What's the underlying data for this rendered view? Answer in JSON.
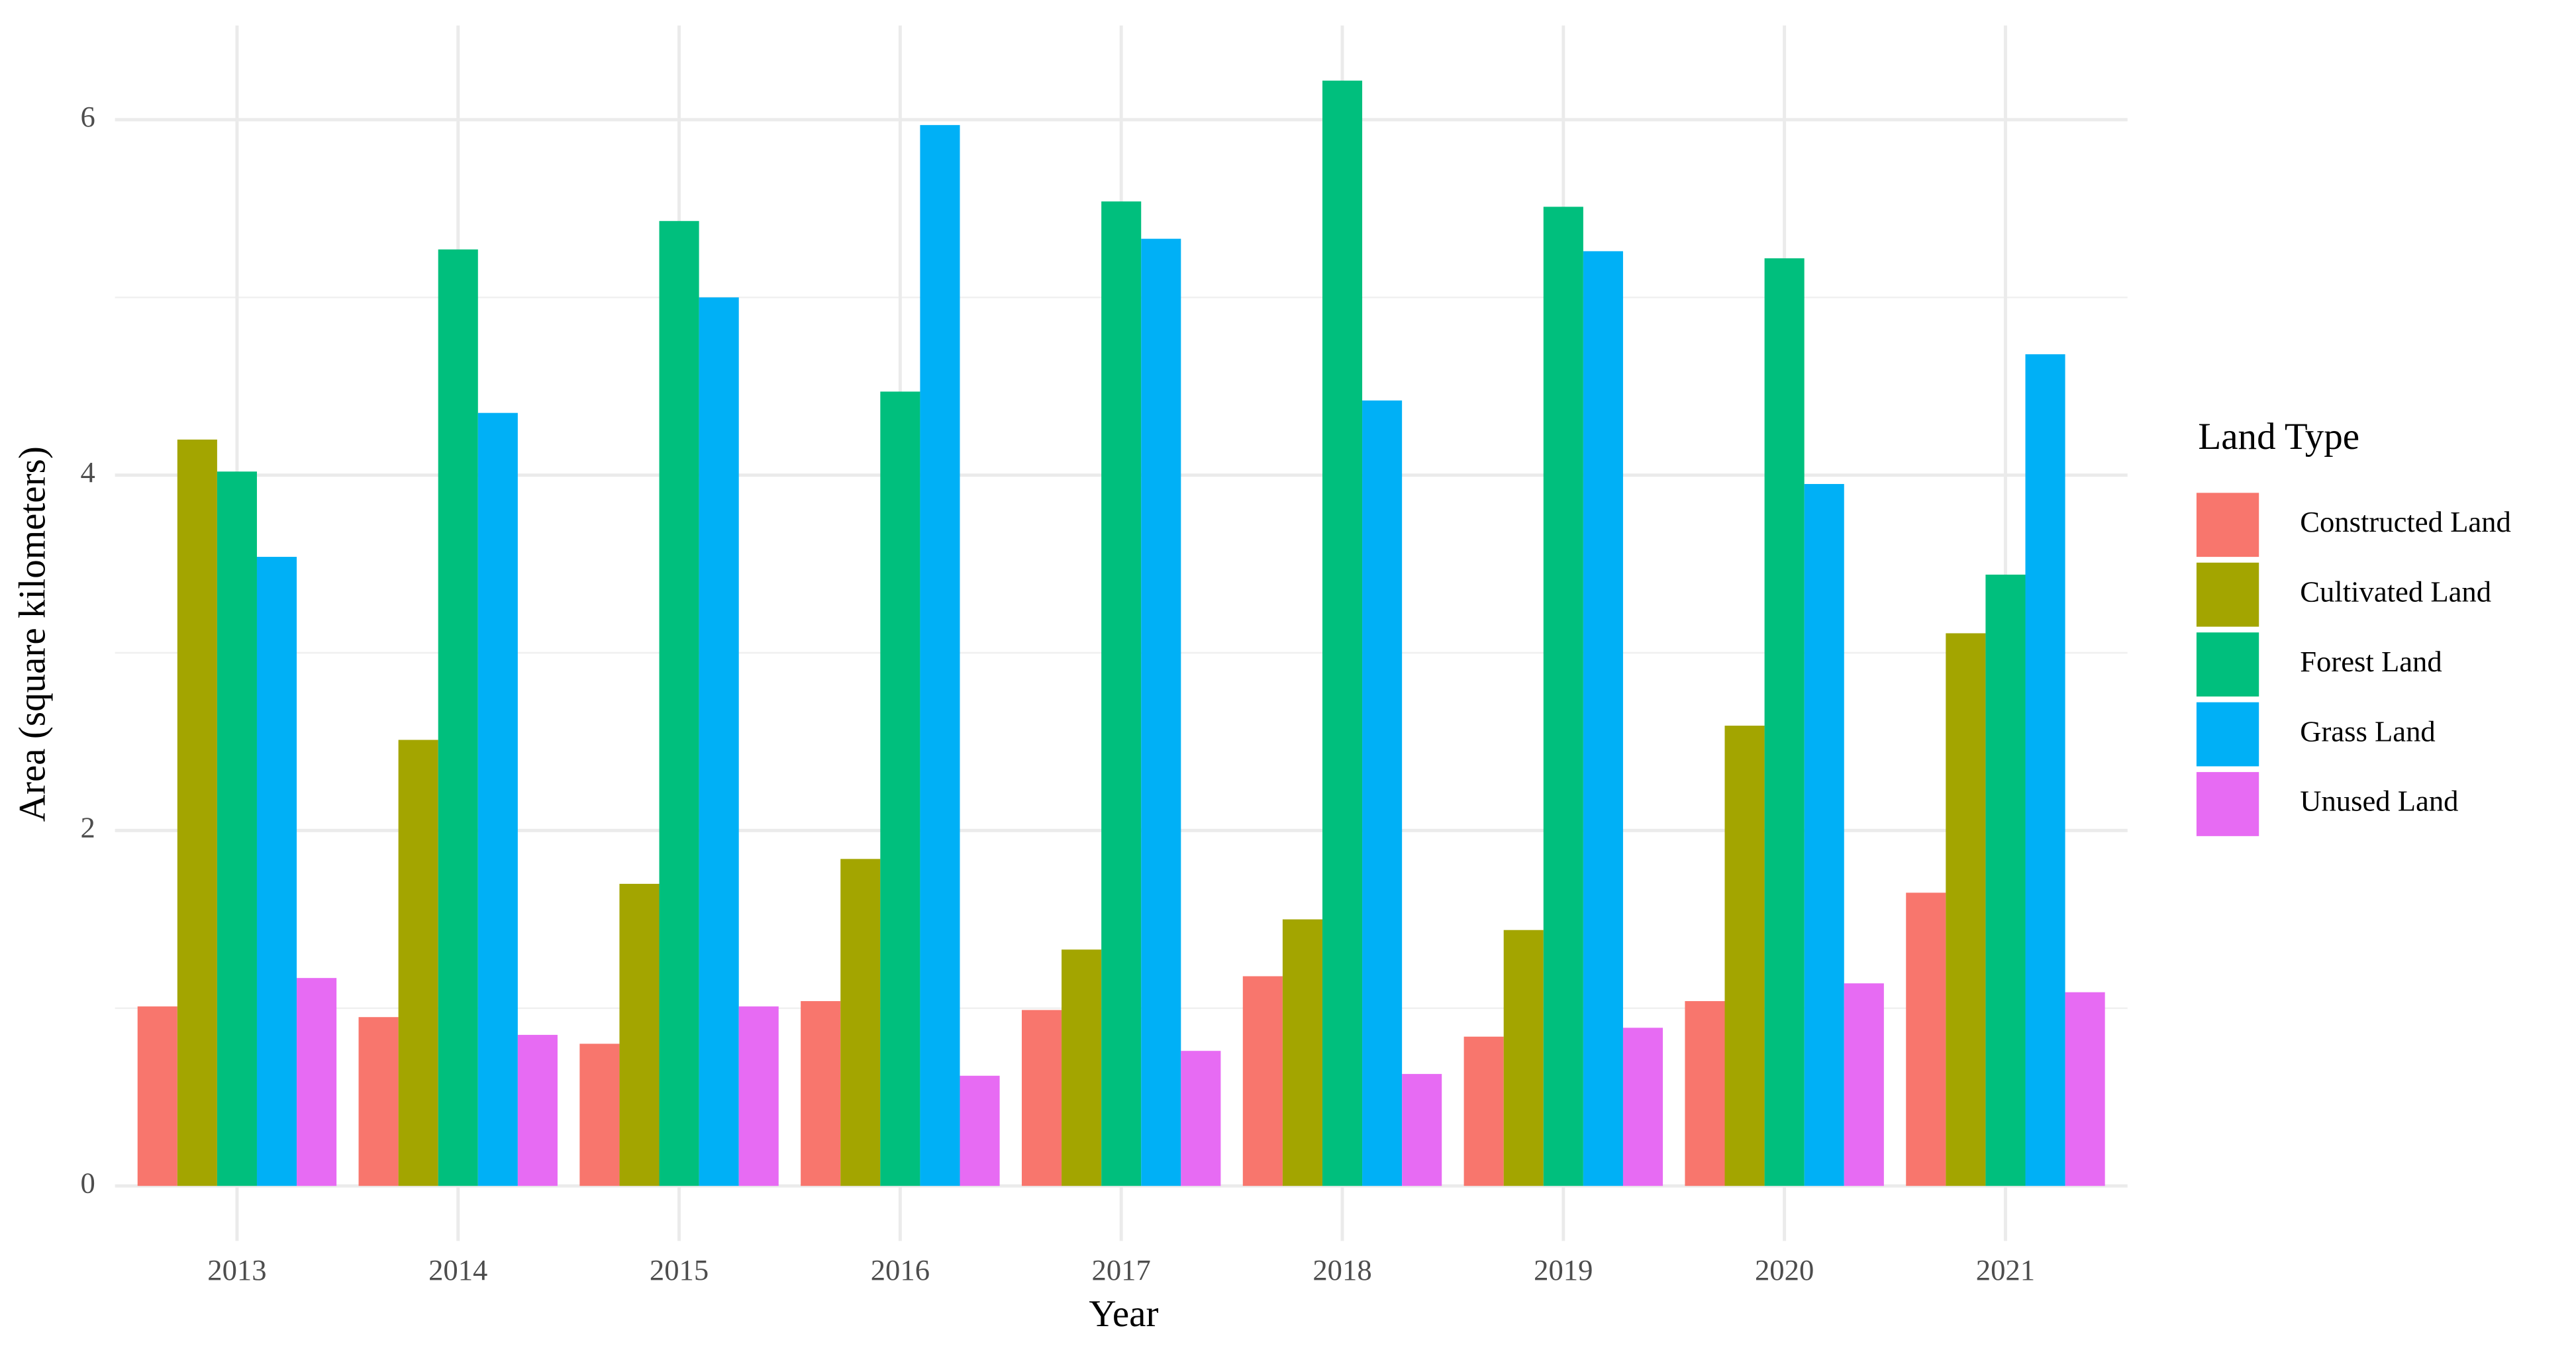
{
  "chart_data": {
    "type": "bar",
    "x_label": "Year",
    "y_label": "Area (square kilometers)",
    "legend_title": "Land Type",
    "legend_position": "right",
    "categories": [
      "2013",
      "2014",
      "2015",
      "2016",
      "2017",
      "2018",
      "2019",
      "2020",
      "2021"
    ],
    "series": [
      {
        "name": "Constructed Land",
        "color": "#F8766D",
        "values": [
          1.01,
          0.95,
          0.8,
          1.04,
          0.99,
          1.18,
          0.84,
          1.04,
          1.65
        ]
      },
      {
        "name": "Cultivated Land",
        "color": "#A3A500",
        "values": [
          4.2,
          2.51,
          1.7,
          1.84,
          1.33,
          1.5,
          1.44,
          2.59,
          3.11
        ]
      },
      {
        "name": "Forest Land",
        "color": "#00BF7D",
        "values": [
          4.02,
          5.27,
          5.43,
          4.47,
          5.54,
          6.22,
          5.51,
          5.22,
          3.44
        ]
      },
      {
        "name": "Grass Land",
        "color": "#00B0F6",
        "values": [
          3.54,
          4.35,
          5.0,
          5.97,
          5.33,
          4.42,
          5.26,
          3.95,
          4.68
        ]
      },
      {
        "name": "Unused Land",
        "color": "#E76BF3",
        "values": [
          1.17,
          0.85,
          1.01,
          0.62,
          0.76,
          0.63,
          0.89,
          1.14,
          1.09
        ]
      }
    ],
    "ylim": [
      -0.31,
      6.53
    ],
    "yticks": [
      0,
      2,
      4,
      6
    ],
    "yminorticks": [
      1,
      3,
      5
    ],
    "grid": true
  }
}
